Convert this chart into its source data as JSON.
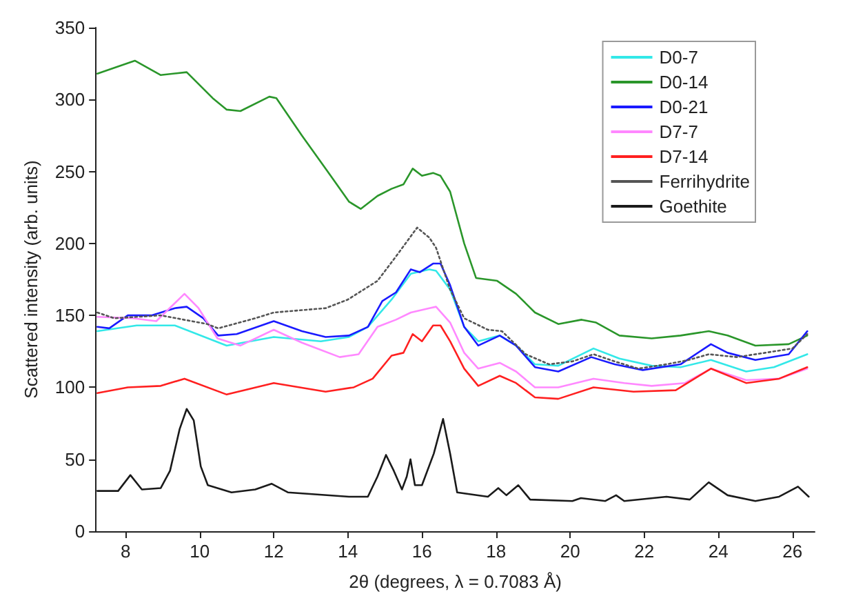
{
  "chart_data": {
    "type": "line",
    "xlabel": "2θ (degrees, λ = 0.7083 Å)",
    "ylabel": "Scattered intensity (arb. units)",
    "xlim": [
      7.2,
      26.6
    ],
    "xticks": [
      8,
      10,
      12,
      14,
      16,
      18,
      20,
      22,
      24,
      26
    ],
    "ylim": [
      0,
      350
    ],
    "yticks": [
      0,
      50,
      100,
      150,
      200,
      250,
      300,
      350
    ],
    "grid": false,
    "legend": "top right",
    "marker": "none",
    "series": [
      {
        "name": "D0-7",
        "color": "#33e8e8",
        "x": [
          7.24,
          8.3,
          9.33,
          10.73,
          12,
          13.27,
          14.03,
          14.54,
          15.18,
          15.7,
          16.2,
          16.38,
          16.76,
          17.14,
          17.52,
          18.1,
          18.54,
          19.05,
          19.68,
          20.63,
          21.33,
          22.2,
          22.98,
          23.8,
          24.75,
          25.5,
          26.4
        ],
        "values": [
          139,
          143,
          143,
          129,
          135,
          132,
          135,
          142,
          161,
          179,
          182,
          181,
          168,
          142,
          132,
          136,
          129,
          116,
          115,
          127,
          120,
          115,
          114,
          119,
          111,
          114,
          123
        ]
      },
      {
        "name": "D0-14",
        "color": "#2a962a",
        "x": [
          7.24,
          8.25,
          8.95,
          9.65,
          10.35,
          10.73,
          11.1,
          11.88,
          12.07,
          12.76,
          13.4,
          14.03,
          14.35,
          14.8,
          15.18,
          15.5,
          15.75,
          16,
          16.3,
          16.5,
          16.76,
          17.14,
          17.46,
          18.03,
          18.54,
          19.05,
          19.68,
          20.31,
          20.7,
          21.33,
          22.2,
          22.98,
          23.74,
          24.25,
          25,
          25.9,
          26.4
        ],
        "values": [
          318,
          327,
          317,
          319,
          301,
          293,
          292,
          302,
          301,
          275,
          252,
          229,
          224,
          233,
          238,
          241,
          252,
          247,
          249,
          247,
          236,
          200,
          176,
          174,
          165,
          152,
          144,
          147,
          145,
          136,
          134,
          136,
          139,
          136,
          129,
          130,
          136
        ]
      },
      {
        "name": "D0-21",
        "color": "#1a1aff",
        "x": [
          7.24,
          7.56,
          8.06,
          8.7,
          9.33,
          9.65,
          10.1,
          10.5,
          11,
          12,
          12.76,
          13.4,
          14.03,
          14.54,
          14.93,
          15.3,
          15.7,
          15.94,
          16.3,
          16.5,
          16.76,
          17.14,
          17.52,
          18.1,
          18.54,
          19.05,
          19.68,
          20.57,
          21.2,
          21.96,
          22.98,
          23.8,
          24.25,
          25,
          25.9,
          26.4
        ],
        "values": [
          142,
          141,
          150,
          150,
          155,
          156,
          148,
          136,
          137,
          146,
          139,
          135,
          136,
          142,
          160,
          166,
          182,
          180,
          186,
          186,
          171,
          142,
          129,
          136,
          129,
          114,
          111,
          121,
          116,
          112,
          116,
          130,
          124,
          119,
          123,
          139
        ]
      },
      {
        "name": "D7-7",
        "color": "#ff88ff",
        "x": [
          7.24,
          8.19,
          8.83,
          9.59,
          9.97,
          10.48,
          11.1,
          12,
          12.76,
          13.78,
          14.29,
          14.8,
          15.3,
          15.7,
          16.2,
          16.38,
          16.76,
          17.14,
          17.52,
          18.1,
          18.54,
          19.05,
          19.68,
          20.63,
          21.46,
          22.2,
          23.1,
          23.8,
          24.75,
          25.64,
          26.4
        ],
        "values": [
          149,
          148,
          146,
          165,
          155,
          134,
          129,
          140,
          131,
          121,
          123,
          142,
          147,
          152,
          155,
          156,
          145,
          124,
          113,
          117,
          111,
          100,
          100,
          106,
          103,
          101,
          103,
          113,
          105,
          106,
          113
        ]
      },
      {
        "name": "D7-14",
        "color": "#ff2020",
        "x": [
          7.24,
          8.06,
          8.95,
          9.59,
          10.73,
          12,
          13.4,
          14.16,
          14.67,
          15.18,
          15.5,
          15.75,
          16,
          16.3,
          16.5,
          16.76,
          17.14,
          17.52,
          18.1,
          18.54,
          19.05,
          19.68,
          20.63,
          21.71,
          22.85,
          23.8,
          24.75,
          25.64,
          26.4
        ],
        "values": [
          96,
          100,
          101,
          106,
          95,
          103,
          97,
          100,
          106,
          122,
          124,
          137,
          132,
          143,
          143,
          132,
          113,
          101,
          108,
          103,
          93,
          92,
          100,
          97,
          98,
          113,
          103,
          106,
          114
        ]
      },
      {
        "name": "Ferrihydrite",
        "color": "#555555",
        "line_style": "dotted",
        "x": [
          7.24,
          7.7,
          8.95,
          10.2,
          10.5,
          11.5,
          12,
          13.4,
          14,
          14.8,
          15.3,
          15.87,
          16.2,
          16.38,
          16.76,
          17.14,
          17.78,
          18.16,
          18.8,
          19.43,
          20.06,
          20.63,
          21.2,
          21.84,
          22.6,
          23.2,
          23.74,
          24.5,
          25.26,
          26,
          26.4
        ],
        "values": [
          152,
          148,
          150,
          144,
          141,
          148,
          152,
          155,
          161,
          174,
          191,
          211,
          204,
          197,
          168,
          148,
          140,
          139,
          123,
          116,
          118,
          123,
          118,
          113,
          116,
          119,
          123,
          121,
          124,
          127,
          137
        ]
      },
      {
        "name": "Goethite",
        "color": "#1a1a1a",
        "x": [
          7.24,
          7.8,
          8.13,
          8.44,
          8.95,
          9.2,
          9.46,
          9.65,
          9.84,
          10.03,
          10.22,
          10.86,
          11.5,
          11.94,
          12.38,
          14.03,
          14.54,
          14.8,
          15.03,
          15.24,
          15.46,
          15.59,
          15.69,
          15.81,
          16,
          16.32,
          16.57,
          16.76,
          16.95,
          17.78,
          18.06,
          18.28,
          18.6,
          18.92,
          20.06,
          20.29,
          20.95,
          21.24,
          21.46,
          22.6,
          23.23,
          23.74,
          24.25,
          25,
          25.64,
          26.15,
          26.44
        ],
        "values": [
          28,
          28,
          39,
          29,
          30,
          42,
          71,
          85,
          77,
          45,
          32,
          27,
          29,
          33,
          27,
          24,
          24,
          38,
          53,
          42,
          29,
          38,
          50,
          32,
          32,
          54,
          78,
          54,
          27,
          24,
          30,
          25,
          32,
          22,
          21,
          23,
          21,
          25,
          21,
          24,
          22,
          34,
          25,
          21,
          24,
          31,
          24
        ]
      }
    ]
  }
}
